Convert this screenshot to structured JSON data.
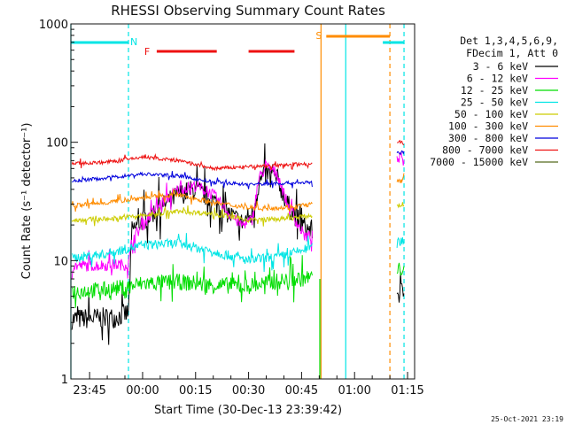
{
  "chart_data": {
    "type": "line",
    "title": "RHESSI Observing Summary Count Rates",
    "xlabel": "Start Time (30-Dec-13 23:39:42)",
    "ylabel": "Count Rate (s⁻¹ detector⁻¹)",
    "ylog": true,
    "ylim": [
      1,
      1000
    ],
    "xlim": [
      "23:39:42",
      "01:17"
    ],
    "x_ticks": [
      "23:45",
      "00:00",
      "00:15",
      "00:30",
      "00:45",
      "01:00",
      "01:15"
    ],
    "y_ticks": [
      "1",
      "10",
      "100",
      "1000"
    ],
    "legend_header": [
      "Det 1,3,4,5,6,9,",
      "FDecim 1, Att 0"
    ],
    "legend_placement": "right",
    "timestamp": "25-Oct-2021 23:19",
    "flags": [
      {
        "label": "N",
        "color": "#00e5e5",
        "segments": [
          [
            "23:39:42",
            "23:56"
          ],
          [
            "01:08",
            "01:14"
          ]
        ]
      },
      {
        "label": "F",
        "color": "#ee1111",
        "segments": [
          [
            "00:04",
            "00:21"
          ],
          [
            "00:30",
            "00:43"
          ]
        ]
      },
      {
        "label": "S",
        "color": "#ff8c00",
        "segments": [
          [
            "00:52",
            "01:10"
          ]
        ]
      }
    ],
    "vertical_markers": [
      {
        "time": "23:39:42",
        "color": "#00e5e5",
        "style": "solid"
      },
      {
        "time": "23:56",
        "color": "#00e5e5",
        "style": "dashed"
      },
      {
        "time": "00:50:30",
        "color": "#ff8c00",
        "style": "solid"
      },
      {
        "time": "00:57:30",
        "color": "#00e5e5",
        "style": "solid"
      },
      {
        "time": "01:10",
        "color": "#ff8c00",
        "style": "dashed"
      },
      {
        "time": "01:14",
        "color": "#00e5e5",
        "style": "dashed"
      }
    ],
    "series": [
      {
        "name": "3 - 6 keV",
        "color": "#000000",
        "noise": 0.09,
        "x": [
          "23:40",
          "23:52",
          "23:56",
          "23:57",
          "00:00",
          "00:05",
          "00:10",
          "00:15",
          "00:20",
          "00:25",
          "00:28",
          "00:31",
          "00:33",
          "00:35",
          "00:38",
          "00:41",
          "00:44",
          "00:46",
          "00:48"
        ],
        "y": [
          3.2,
          3.3,
          3.6,
          18,
          22,
          28,
          36,
          40,
          32,
          24,
          21,
          24,
          45,
          55,
          50,
          30,
          22,
          19,
          18
        ],
        "x2": [
          "01:12",
          "01:14"
        ],
        "y2": [
          5.2,
          5.5
        ]
      },
      {
        "name": "6 - 12 keV",
        "color": "#ff00ff",
        "noise": 0.05,
        "x": [
          "23:40",
          "23:56",
          "23:57",
          "00:00",
          "00:05",
          "00:10",
          "00:15",
          "00:20",
          "00:25",
          "00:28",
          "00:31",
          "00:33",
          "00:35",
          "00:38",
          "00:41",
          "00:44",
          "00:46",
          "00:48"
        ],
        "y": [
          9,
          9.3,
          15,
          20,
          30,
          40,
          43,
          36,
          24,
          20,
          22,
          50,
          62,
          55,
          30,
          20,
          16,
          16
        ],
        "x2": [
          "01:12",
          "01:14"
        ],
        "y2": [
          70,
          78
        ]
      },
      {
        "name": "12 - 25 keV",
        "color": "#00dd00",
        "noise": 0.07,
        "x": [
          "23:40",
          "23:50",
          "23:56",
          "00:00",
          "00:10",
          "00:20",
          "00:30",
          "00:40",
          "00:48"
        ],
        "y": [
          5.5,
          5.7,
          6,
          6.4,
          6.6,
          6.2,
          6.1,
          6.8,
          7.2
        ],
        "x2": [
          "01:12",
          "01:14"
        ],
        "y2": [
          8,
          9
        ]
      },
      {
        "name": "25 - 50 keV",
        "color": "#00e5e5",
        "noise": 0.04,
        "x": [
          "23:40",
          "23:50",
          "00:00",
          "00:10",
          "00:20",
          "00:30",
          "00:40",
          "00:48"
        ],
        "y": [
          10.5,
          11.5,
          13.5,
          14,
          12,
          10,
          11,
          13
        ],
        "x2": [
          "01:12",
          "01:14"
        ],
        "y2": [
          14,
          15
        ]
      },
      {
        "name": "50 - 100 keV",
        "color": "#cccc00",
        "noise": 0.02,
        "x": [
          "23:40",
          "23:50",
          "00:00",
          "00:10",
          "00:20",
          "00:30",
          "00:40",
          "00:48"
        ],
        "y": [
          22,
          22.5,
          24,
          26,
          25,
          22,
          22.5,
          24
        ],
        "x2": [
          "01:12",
          "01:14"
        ],
        "y2": [
          29,
          30
        ]
      },
      {
        "name": "100 - 300 keV",
        "color": "#ff8c00",
        "noise": 0.02,
        "x": [
          "23:40",
          "23:50",
          "00:00",
          "00:10",
          "00:20",
          "00:30",
          "00:40",
          "00:48"
        ],
        "y": [
          29,
          31,
          34,
          36,
          31,
          28,
          28,
          30
        ],
        "x2": [
          "01:12",
          "01:14"
        ],
        "y2": [
          46,
          48
        ]
      },
      {
        "name": "300 - 800 keV",
        "color": "#0000dd",
        "noise": 0.015,
        "x": [
          "23:40",
          "23:50",
          "00:00",
          "00:10",
          "00:20",
          "00:30",
          "00:40",
          "00:48"
        ],
        "y": [
          47,
          50,
          54,
          52,
          46,
          44,
          45,
          46
        ],
        "x2": [
          "01:12",
          "01:14"
        ],
        "y2": [
          80,
          83
        ]
      },
      {
        "name": "800 - 7000 keV",
        "color": "#ee1111",
        "noise": 0.015,
        "x": [
          "23:40",
          "23:50",
          "00:00",
          "00:10",
          "00:20",
          "00:30",
          "00:40",
          "00:48"
        ],
        "y": [
          66,
          68,
          75,
          70,
          60,
          62,
          64,
          66
        ],
        "x2": [
          "01:12",
          "01:14"
        ],
        "y2": [
          102,
          98
        ]
      },
      {
        "name": "7000 - 15000 keV",
        "color": "#556b1f",
        "noise": 0,
        "x": [],
        "y": [],
        "x2": [],
        "y2": []
      }
    ]
  }
}
